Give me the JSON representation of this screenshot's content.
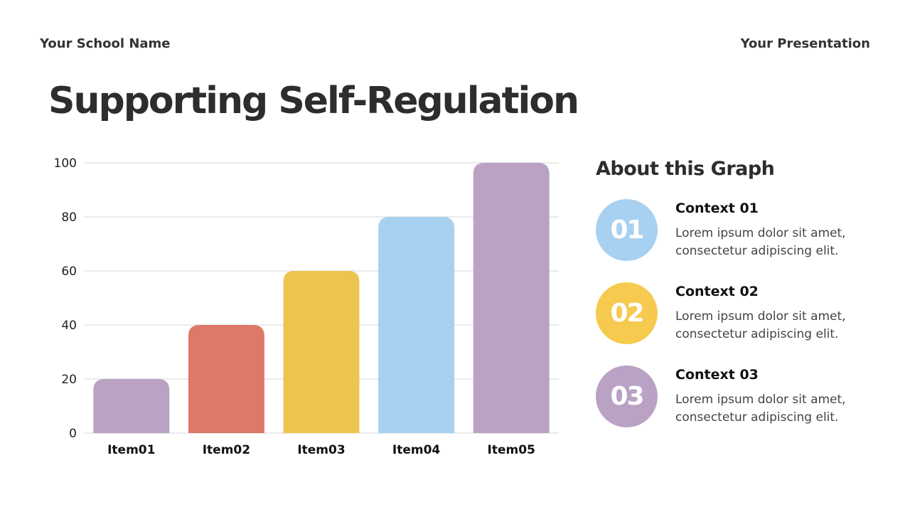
{
  "header": {
    "school_name": "Your School Name",
    "presentation": "Your Presentation"
  },
  "title": "Supporting Self-Regulation",
  "chart_data": {
    "type": "bar",
    "categories": [
      "Item01",
      "Item02",
      "Item03",
      "Item04",
      "Item05"
    ],
    "values": [
      20,
      40,
      60,
      80,
      100
    ],
    "colors": [
      "#b9a2c3",
      "#de7868",
      "#ecc551",
      "#a8d1f1",
      "#b9a2c3"
    ],
    "yticks": [
      "0",
      "20",
      "40",
      "60",
      "80",
      "100"
    ],
    "ylim": [
      0,
      100
    ],
    "grid": true,
    "title": "",
    "xlabel": "",
    "ylabel": ""
  },
  "about": {
    "title": "About this Graph",
    "items": [
      {
        "number": "01",
        "heading": "Context 01",
        "text": "Lorem ipsum dolor sit amet, consectetur adipiscing elit.",
        "color": "#a8d1f1"
      },
      {
        "number": "02",
        "heading": "Context 02",
        "text": "Lorem ipsum dolor sit amet, consectetur adipiscing elit.",
        "color": "#f6ca4e"
      },
      {
        "number": "03",
        "heading": "Context 03",
        "text": "Lorem ipsum dolor sit amet, consectetur adipiscing elit.",
        "color": "#b9a2c3"
      }
    ]
  }
}
